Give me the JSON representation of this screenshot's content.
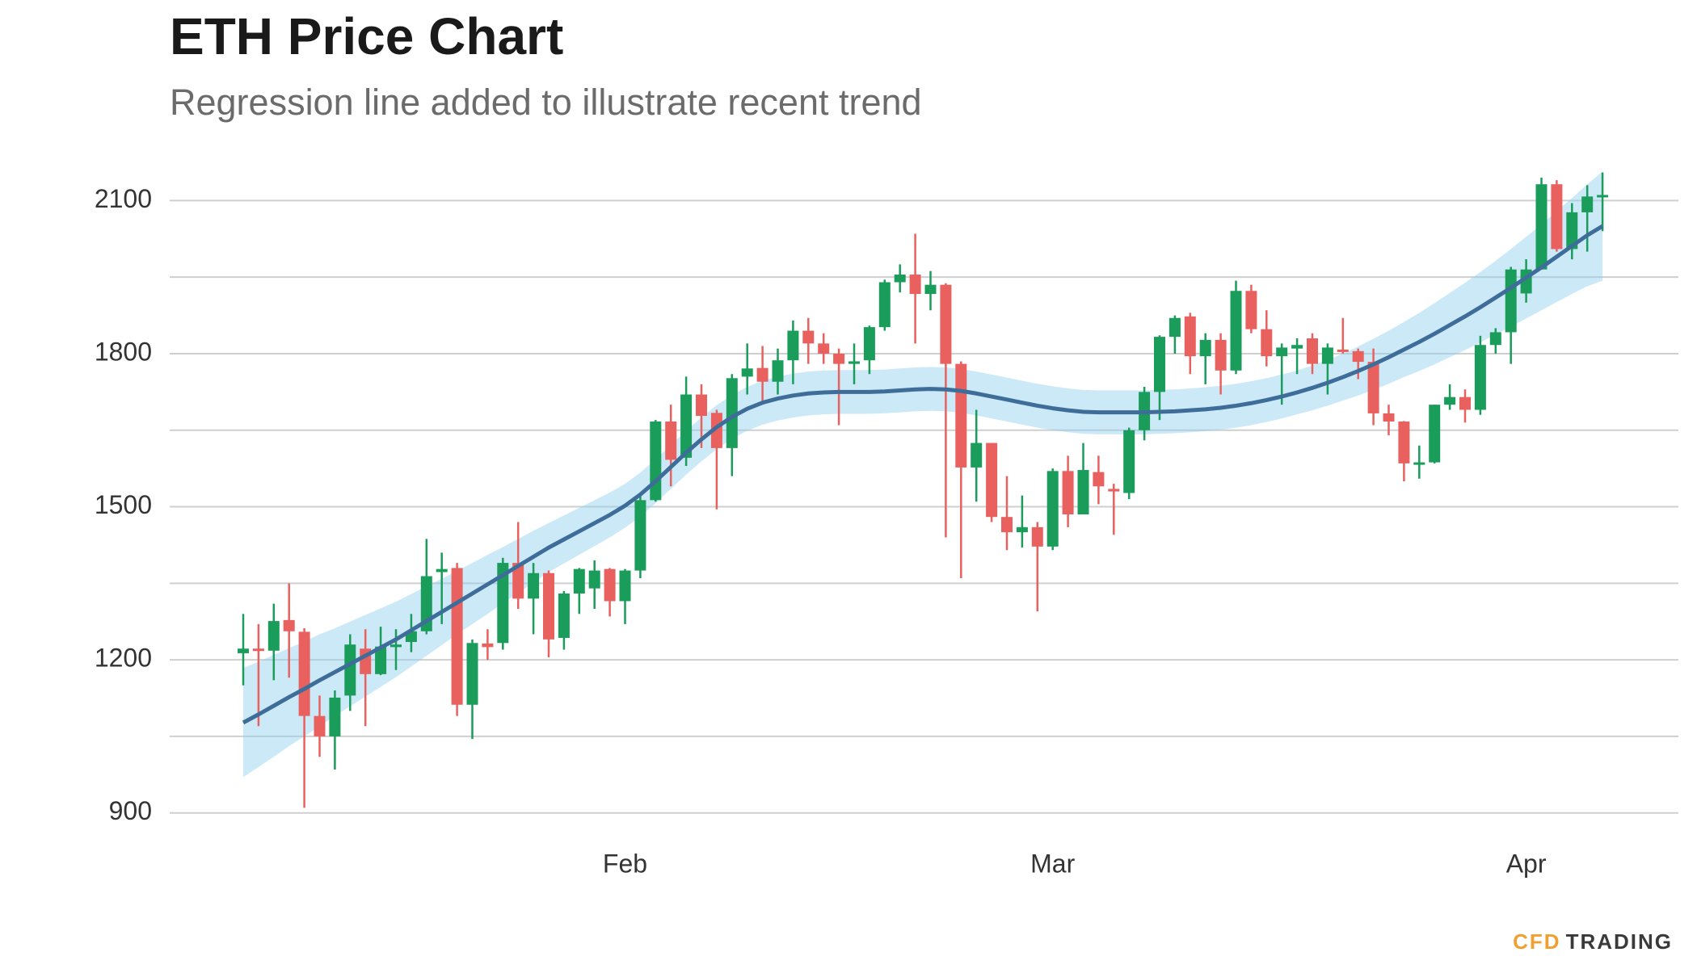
{
  "chart_data": {
    "type": "candlestick",
    "title": "ETH Price Chart",
    "subtitle": "Regression line added to illustrate recent trend",
    "categories": [
      null,
      null,
      null,
      null,
      null,
      null,
      null,
      null,
      null,
      null,
      null,
      null,
      null,
      null,
      null,
      null,
      null,
      null,
      null,
      null,
      null,
      null,
      null,
      null,
      null,
      "Feb",
      null,
      null,
      null,
      null,
      null,
      null,
      null,
      null,
      null,
      null,
      null,
      null,
      null,
      null,
      null,
      null,
      null,
      null,
      null,
      null,
      null,
      null,
      null,
      null,
      null,
      null,
      null,
      "Mar",
      null,
      null,
      null,
      null,
      null,
      null,
      null,
      null,
      null,
      null,
      null,
      null,
      null,
      null,
      null,
      null,
      null,
      null,
      null,
      null,
      null,
      null,
      null,
      null,
      null,
      null,
      null,
      null,
      null,
      null,
      "Apr",
      null,
      null,
      null,
      null,
      null
    ],
    "open": [
      1213,
      1222,
      1218,
      1278,
      1255,
      1090,
      1050,
      1130,
      1222,
      1172,
      1225,
      1235,
      1256,
      1372,
      1380,
      1112,
      1232,
      1233,
      1390,
      1320,
      1370,
      1243,
      1330,
      1340,
      1378,
      1315,
      1375,
      1513,
      1667,
      1596,
      1720,
      1684,
      1615,
      1755,
      1772,
      1745,
      1787,
      1845,
      1820,
      1800,
      1780,
      1787,
      1852,
      1940,
      1955,
      1917,
      1935,
      1780,
      1577,
      1625,
      1480,
      1450,
      1460,
      1422,
      1570,
      1485,
      1568,
      1535,
      1527,
      1650,
      1725,
      1833,
      1873,
      1795,
      1827,
      1767,
      1923,
      1848,
      1795,
      1810,
      1830,
      1780,
      1808,
      1805,
      1784,
      1683,
      1667,
      1585,
      1587,
      1700,
      1715,
      1690,
      1817,
      1842,
      1918,
      1965,
      2132,
      2005,
      2077,
      2108
    ],
    "high": [
      1290,
      1270,
      1310,
      1350,
      1262,
      1130,
      1140,
      1250,
      1260,
      1265,
      1260,
      1290,
      1437,
      1410,
      1390,
      1240,
      1260,
      1400,
      1470,
      1390,
      1375,
      1335,
      1380,
      1395,
      1380,
      1378,
      1520,
      1670,
      1700,
      1755,
      1740,
      1690,
      1760,
      1820,
      1815,
      1810,
      1865,
      1870,
      1840,
      1810,
      1820,
      1855,
      1945,
      1975,
      2035,
      1962,
      1938,
      1785,
      1690,
      1625,
      1560,
      1522,
      1470,
      1575,
      1600,
      1625,
      1600,
      1545,
      1655,
      1735,
      1836,
      1875,
      1880,
      1840,
      1840,
      1943,
      1935,
      1885,
      1820,
      1830,
      1840,
      1820,
      1870,
      1810,
      1810,
      1700,
      1668,
      1620,
      1700,
      1740,
      1730,
      1835,
      1850,
      1970,
      1985,
      2145,
      2140,
      2095,
      2130,
      2155
    ],
    "low": [
      1150,
      1070,
      1160,
      1165,
      910,
      1010,
      985,
      1100,
      1070,
      1170,
      1180,
      1215,
      1250,
      1270,
      1090,
      1045,
      1200,
      1220,
      1300,
      1250,
      1205,
      1220,
      1290,
      1300,
      1285,
      1270,
      1360,
      1510,
      1540,
      1580,
      1615,
      1495,
      1560,
      1720,
      1700,
      1720,
      1740,
      1780,
      1780,
      1660,
      1740,
      1760,
      1845,
      1920,
      1820,
      1885,
      1440,
      1360,
      1510,
      1470,
      1415,
      1420,
      1295,
      1415,
      1460,
      1485,
      1505,
      1445,
      1515,
      1630,
      1670,
      1800,
      1760,
      1740,
      1720,
      1760,
      1840,
      1775,
      1700,
      1760,
      1760,
      1720,
      1800,
      1750,
      1660,
      1640,
      1550,
      1555,
      1585,
      1690,
      1665,
      1680,
      1800,
      1780,
      1900,
      1965,
      2000,
      1985,
      2000,
      2040
    ],
    "close": [
      1222,
      1218,
      1276,
      1256,
      1090,
      1050,
      1126,
      1230,
      1172,
      1226,
      1230,
      1256,
      1364,
      1378,
      1112,
      1233,
      1225,
      1390,
      1320,
      1370,
      1240,
      1330,
      1378,
      1375,
      1315,
      1375,
      1513,
      1667,
      1592,
      1720,
      1678,
      1615,
      1752,
      1771,
      1745,
      1787,
      1845,
      1820,
      1800,
      1780,
      1785,
      1852,
      1940,
      1955,
      1917,
      1935,
      1780,
      1577,
      1625,
      1480,
      1450,
      1460,
      1422,
      1570,
      1485,
      1572,
      1540,
      1530,
      1650,
      1725,
      1833,
      1870,
      1795,
      1827,
      1767,
      1923,
      1848,
      1795,
      1812,
      1817,
      1780,
      1812,
      1805,
      1784,
      1683,
      1667,
      1585,
      1587,
      1700,
      1715,
      1690,
      1817,
      1842,
      1965,
      1965,
      2132,
      2005,
      2077,
      2108,
      2111
    ],
    "up_color": "#1a9c5b",
    "down_color": "#e8615f",
    "regression": {
      "color": "#3e6d99",
      "band_color": "#8ecfef",
      "values": [
        1077,
        1093,
        1110,
        1127,
        1143,
        1160,
        1176,
        1192,
        1208,
        1224,
        1240,
        1258,
        1276,
        1294,
        1312,
        1330,
        1348,
        1366,
        1384,
        1402,
        1420,
        1436,
        1452,
        1468,
        1484,
        1502,
        1524,
        1550,
        1578,
        1606,
        1632,
        1656,
        1676,
        1692,
        1704,
        1712,
        1718,
        1722,
        1724,
        1725,
        1725,
        1725,
        1726,
        1728,
        1730,
        1731,
        1730,
        1727,
        1722,
        1716,
        1710,
        1704,
        1698,
        1693,
        1689,
        1686,
        1685,
        1685,
        1685,
        1685,
        1686,
        1687,
        1689,
        1691,
        1694,
        1698,
        1703,
        1709,
        1716,
        1724,
        1733,
        1743,
        1754,
        1766,
        1779,
        1793,
        1808,
        1823,
        1839,
        1856,
        1873,
        1891,
        1910,
        1929,
        1949,
        1969,
        1990,
        2011,
        2032,
        2050
      ],
      "upper": [
        1184,
        1196,
        1210,
        1223,
        1236,
        1250,
        1262,
        1275,
        1288,
        1301,
        1314,
        1329,
        1344,
        1359,
        1374,
        1390,
        1406,
        1421,
        1437,
        1453,
        1468,
        1483,
        1498,
        1513,
        1528,
        1545,
        1567,
        1593,
        1621,
        1649,
        1675,
        1699,
        1719,
        1735,
        1747,
        1755,
        1761,
        1765,
        1767,
        1768,
        1768,
        1768,
        1769,
        1771,
        1773,
        1774,
        1773,
        1770,
        1765,
        1759,
        1753,
        1747,
        1741,
        1736,
        1732,
        1729,
        1728,
        1728,
        1728,
        1728,
        1729,
        1730,
        1732,
        1734,
        1737,
        1741,
        1746,
        1752,
        1759,
        1767,
        1777,
        1788,
        1800,
        1814,
        1829,
        1845,
        1862,
        1880,
        1899,
        1919,
        1939,
        1960,
        1982,
        2005,
        2029,
        2053,
        2079,
        2105,
        2132,
        2157
      ],
      "lower": [
        970,
        990,
        1010,
        1031,
        1050,
        1070,
        1090,
        1109,
        1128,
        1147,
        1166,
        1187,
        1208,
        1229,
        1250,
        1270,
        1290,
        1311,
        1331,
        1351,
        1372,
        1389,
        1406,
        1423,
        1440,
        1459,
        1481,
        1507,
        1535,
        1563,
        1589,
        1613,
        1633,
        1649,
        1661,
        1669,
        1675,
        1679,
        1681,
        1682,
        1682,
        1682,
        1683,
        1685,
        1687,
        1688,
        1687,
        1684,
        1679,
        1673,
        1667,
        1661,
        1655,
        1650,
        1646,
        1643,
        1642,
        1642,
        1642,
        1642,
        1643,
        1644,
        1646,
        1648,
        1651,
        1655,
        1660,
        1666,
        1673,
        1681,
        1689,
        1698,
        1708,
        1718,
        1729,
        1741,
        1754,
        1766,
        1779,
        1793,
        1807,
        1822,
        1838,
        1853,
        1869,
        1885,
        1901,
        1917,
        1932,
        1943
      ]
    },
    "ylim": [
      860,
      2175
    ],
    "yticks": [
      900,
      1200,
      1500,
      1800,
      2100
    ],
    "minor_yticks": [
      1050,
      1350,
      1650,
      1950
    ],
    "grid": true,
    "brand": {
      "prefix": "CFD",
      "name": "TRADING",
      "prefix_color": "#f0a030",
      "name_color": "#3a3a3a"
    }
  }
}
